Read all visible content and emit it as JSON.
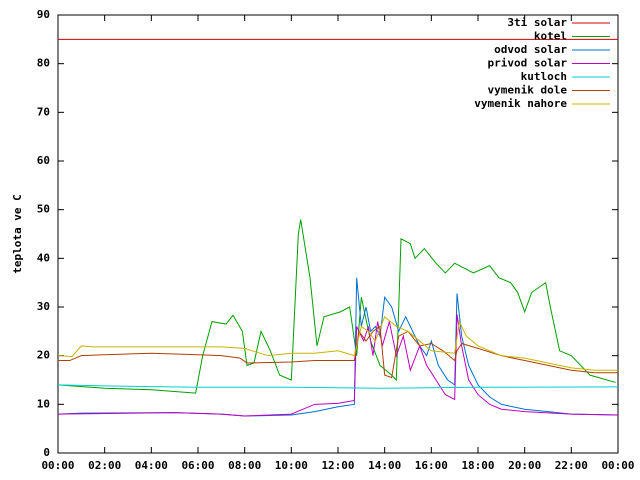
{
  "chart_data": {
    "type": "line",
    "y_label": "teplota ve C",
    "xlim": [
      0,
      24
    ],
    "ylim": [
      0,
      90
    ],
    "xticks": [
      {
        "value": 0,
        "label": "00:00"
      },
      {
        "value": 2,
        "label": "02:00"
      },
      {
        "value": 4,
        "label": "04:00"
      },
      {
        "value": 6,
        "label": "06:00"
      },
      {
        "value": 8,
        "label": "08:00"
      },
      {
        "value": 10,
        "label": "10:00"
      },
      {
        "value": 12,
        "label": "12:00"
      },
      {
        "value": 14,
        "label": "14:00"
      },
      {
        "value": 16,
        "label": "16:00"
      },
      {
        "value": 18,
        "label": "18:00"
      },
      {
        "value": 20,
        "label": "20:00"
      },
      {
        "value": 22,
        "label": "22:00"
      },
      {
        "value": 24,
        "label": "00:00"
      }
    ],
    "yticks": [
      0,
      10,
      20,
      30,
      40,
      50,
      60,
      70,
      80,
      90
    ],
    "legend": "top-right",
    "series": [
      {
        "name": "3ti solar",
        "color": "#d00000",
        "x": [
          0,
          24
        ],
        "values": [
          85,
          85
        ]
      },
      {
        "name": "kotel",
        "color": "#00a000",
        "x": [
          0,
          2,
          4,
          5.9,
          6.2,
          6.6,
          7.2,
          7.5,
          7.9,
          8.1,
          8.4,
          8.7,
          9.1,
          9.5,
          10,
          10.3,
          10.4,
          10.8,
          11.1,
          11.4,
          12.1,
          12.5,
          12.8,
          13,
          13.4,
          13.8,
          14.3,
          14.5,
          14.7,
          15.1,
          15.3,
          15.7,
          16.2,
          16.6,
          17,
          17.4,
          17.8,
          18.5,
          18.9,
          19.4,
          19.7,
          20,
          20.3,
          20.9,
          21.1,
          21.5,
          22,
          22.8,
          23.9
        ],
        "values": [
          14,
          13.3,
          13,
          12.3,
          20,
          27,
          26.5,
          28.3,
          25,
          18,
          18.5,
          25,
          21,
          16,
          15,
          45,
          48,
          36,
          22,
          28,
          29,
          30,
          20,
          32,
          23,
          18,
          16,
          15,
          44,
          43,
          40,
          42,
          39,
          37,
          39,
          38,
          37,
          38.5,
          36,
          35,
          33,
          29,
          33,
          35,
          30,
          21,
          20,
          16,
          14.5
        ]
      },
      {
        "name": "odvod solar",
        "color": "#0070d0",
        "x": [
          0,
          1,
          5,
          7,
          8,
          10,
          11,
          12,
          12.7,
          12.8,
          13,
          13.2,
          13.4,
          13.6,
          13.8,
          14,
          14.3,
          14.6,
          14.9,
          15.2,
          15.5,
          15.8,
          16,
          16.3,
          16.7,
          17,
          17.1,
          17.3,
          17.6,
          18,
          18.5,
          19,
          20,
          21,
          22,
          24
        ],
        "values": [
          8,
          8.2,
          8.3,
          8,
          7.6,
          7.8,
          8.5,
          9.5,
          10,
          36,
          26,
          30,
          25,
          26,
          24,
          32,
          30,
          25,
          28,
          25,
          22,
          20,
          23,
          18,
          15,
          14,
          32.8,
          24,
          18,
          14,
          11.5,
          10,
          9,
          8.5,
          8,
          7.8
        ]
      },
      {
        "name": "privod solar",
        "color": "#c000c0",
        "x": [
          0,
          5,
          7,
          8,
          10,
          10.5,
          11,
          12,
          12.7,
          12.8,
          13.1,
          13.3,
          13.5,
          13.7,
          13.9,
          14.2,
          14.5,
          14.8,
          15.1,
          15.5,
          15.8,
          16.2,
          16.6,
          17,
          17.1,
          17.3,
          17.6,
          18,
          18.5,
          19,
          20,
          22,
          24
        ],
        "values": [
          8,
          8.3,
          8,
          7.6,
          8,
          9,
          10,
          10.2,
          10.8,
          26,
          23,
          26,
          20,
          27,
          22,
          27,
          20,
          24,
          17,
          22,
          18,
          15,
          12,
          11,
          28.5,
          22,
          15,
          12,
          10,
          9,
          8.5,
          8,
          7.8
        ]
      },
      {
        "name": "kutloch",
        "color": "#00d0d0",
        "x": [
          0,
          2,
          6,
          10,
          14,
          18,
          24
        ],
        "values": [
          14,
          13.8,
          13.5,
          13.5,
          13.3,
          13.5,
          13.6
        ]
      },
      {
        "name": "vymenik dole",
        "color": "#b04000",
        "x": [
          0,
          0.5,
          1,
          2,
          4,
          6,
          7,
          7.8,
          8.1,
          10,
          11,
          12,
          12.7,
          12.9,
          13.2,
          13.5,
          13.8,
          14,
          14.3,
          14.6,
          15,
          15.5,
          16,
          16.5,
          17,
          17.1,
          17.3,
          18,
          19,
          20,
          21,
          22,
          23,
          24
        ],
        "values": [
          19,
          19,
          20,
          20.2,
          20.5,
          20.2,
          20,
          19.5,
          18.5,
          18.7,
          19,
          19,
          19,
          25,
          23,
          25,
          26,
          16,
          15.5,
          24,
          25,
          22,
          22.5,
          21,
          19,
          21,
          22.5,
          21.5,
          20,
          19,
          18,
          17,
          16.5,
          16.5
        ]
      },
      {
        "name": "vymenik nahore",
        "color": "#c8b400",
        "x": [
          0,
          0.6,
          1,
          1.5,
          3,
          6,
          7,
          8,
          9,
          10,
          11,
          12,
          12.7,
          13,
          13.3,
          13.6,
          14,
          14.5,
          15,
          15.5,
          16,
          17,
          17.2,
          17.5,
          18,
          19,
          20,
          21,
          22,
          23,
          24
        ],
        "values": [
          20,
          19.8,
          22,
          21.8,
          21.8,
          21.8,
          21.8,
          21.5,
          20,
          20.5,
          20.5,
          21,
          20,
          26,
          25,
          23,
          28,
          26,
          25,
          23,
          21,
          20.5,
          27,
          24,
          22,
          20,
          19.5,
          18.5,
          17.5,
          17,
          17
        ]
      }
    ]
  }
}
